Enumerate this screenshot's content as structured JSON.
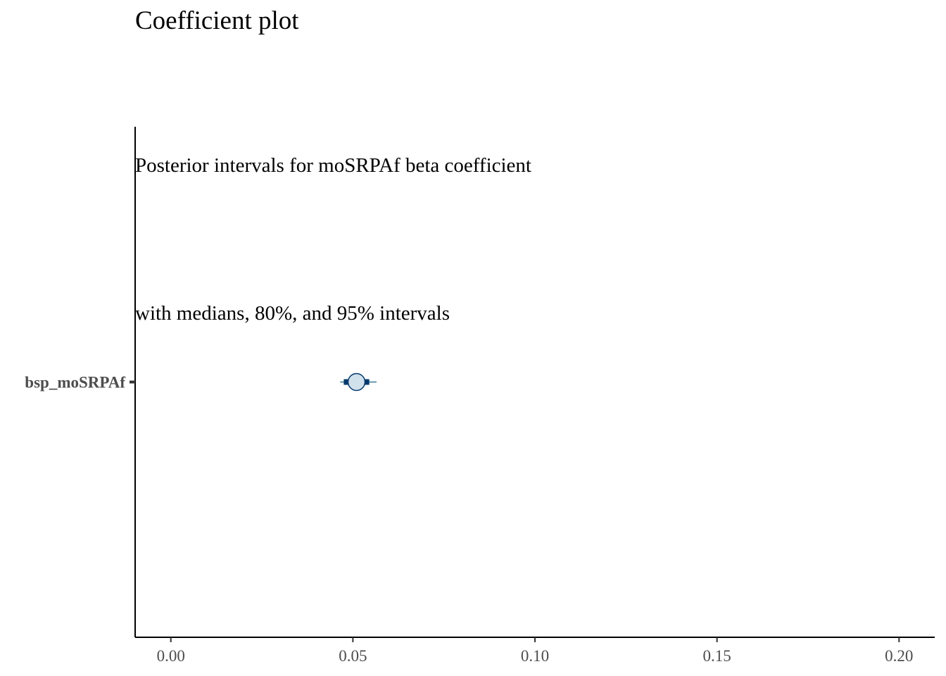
{
  "chart_data": {
    "type": "interval",
    "title": "Coefficient plot",
    "subtitle_lines": [
      "Posterior intervals for moSRPAf beta coefficient",
      "with medians, 80%, and 95% intervals"
    ],
    "xlabel": "",
    "ylabel": "",
    "xlim": [
      -0.0098,
      0.2098
    ],
    "x_ticks": [
      0.0,
      0.05,
      0.1,
      0.15,
      0.2
    ],
    "x_tick_labels": [
      "0.00",
      "0.05",
      "0.10",
      "0.15",
      "0.20"
    ],
    "parameters": [
      {
        "label": "bsp_moSRPAf",
        "median": 0.051,
        "inner_80": [
          0.0475,
          0.0545
        ],
        "outer_95": [
          0.0465,
          0.0565
        ]
      }
    ],
    "colors": {
      "line_outer": "#6497b1",
      "line_inner": "#03396c",
      "point_fill": "#d1e1ec",
      "point_stroke": "#03396c"
    },
    "grid": false,
    "legend": "none"
  }
}
